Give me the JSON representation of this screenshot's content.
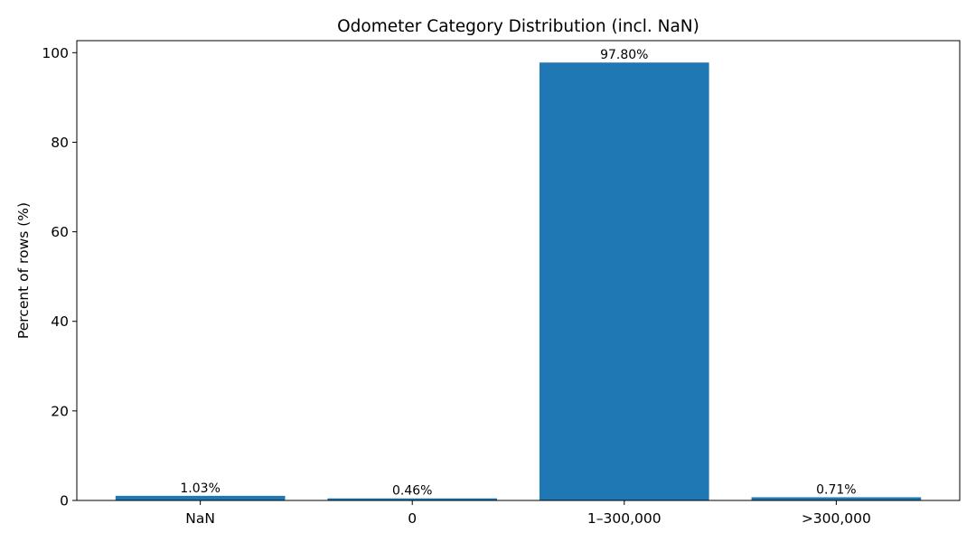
{
  "chart_data": {
    "type": "bar",
    "title": "Odometer Category Distribution (incl. NaN)",
    "xlabel": "",
    "ylabel": "Percent of rows (%)",
    "categories": [
      "NaN",
      "0",
      "1–300,000",
      ">300,000"
    ],
    "values": [
      1.03,
      0.46,
      97.8,
      0.71
    ],
    "data_labels": [
      "1.03%",
      "0.46%",
      "97.80%",
      "0.71%"
    ],
    "ylim": [
      0,
      102.69
    ],
    "yticks": [
      0,
      20,
      40,
      60,
      80,
      100
    ],
    "ytick_labels": [
      "0",
      "20",
      "40",
      "60",
      "80",
      "100"
    ],
    "bar_color": "#1f77b4",
    "grid": false,
    "legend": "none"
  }
}
